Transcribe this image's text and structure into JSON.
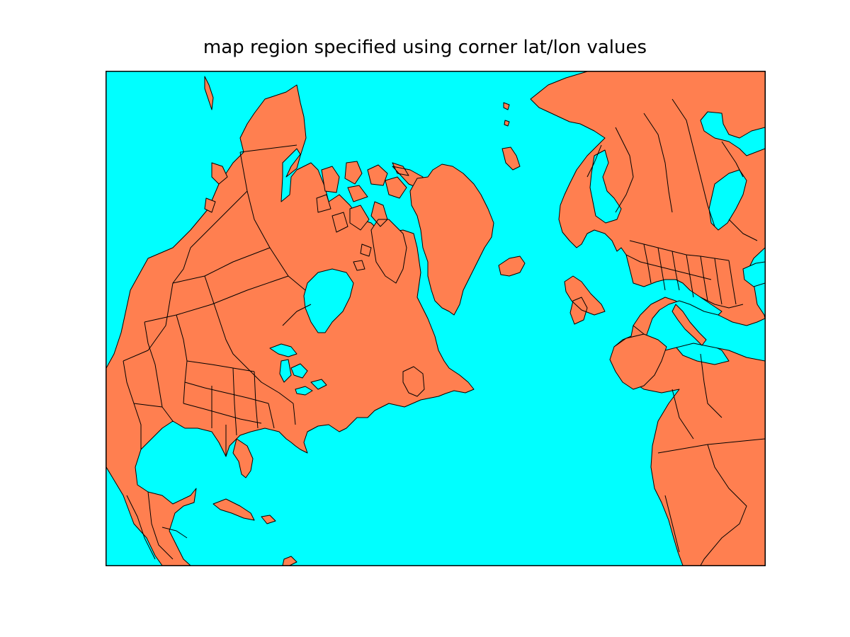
{
  "title": "map region specified using corner lat/lon values",
  "colors": {
    "ocean": "#00ffff",
    "land": "#ff7f50",
    "border": "#000000",
    "page": "#ffffff"
  }
}
